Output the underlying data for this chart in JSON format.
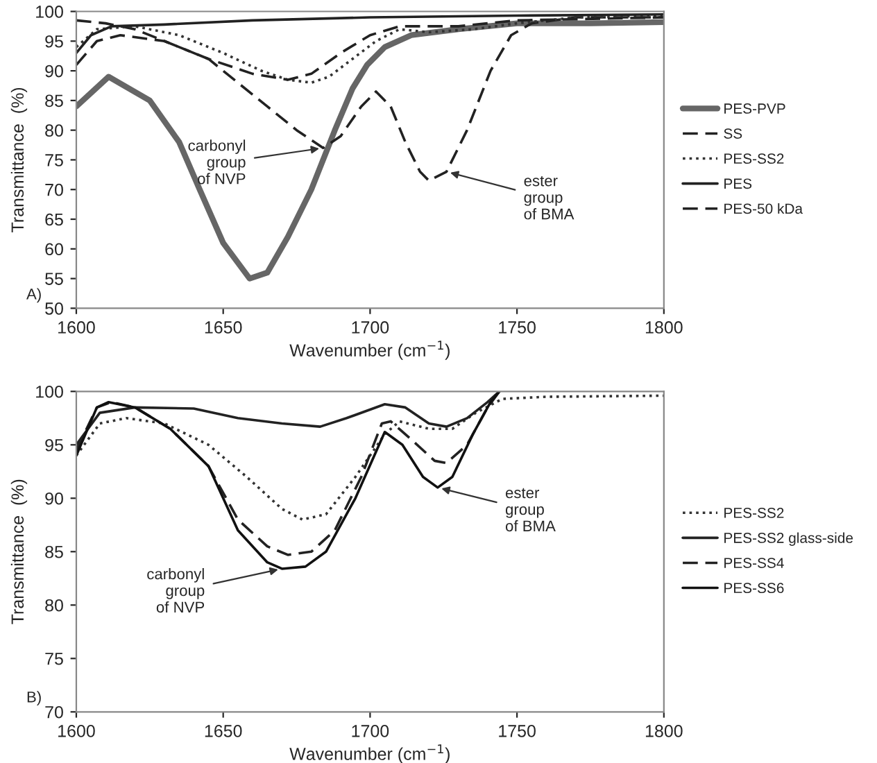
{
  "chart_data": [
    {
      "type": "line",
      "xlabel": "Wavenumber (cm$^{−1}$)",
      "ylabel": "Transmittance  (%)",
      "xlim": [
        1600,
        1800
      ],
      "xticks": [
        1600,
        1650,
        1700,
        1750,
        1800
      ],
      "ylim": [
        50,
        100
      ],
      "yticks": [
        50,
        55,
        60,
        65,
        70,
        75,
        80,
        85,
        90,
        95,
        100
      ],
      "grid": false,
      "legend": "right",
      "marker": "none",
      "annotations": [
        "A)",
        {
          "text": "carbonyl\ngroup\nof NVP",
          "x": 1684,
          "y": 77
        },
        {
          "text": "ester\ngroup\nof BMA",
          "x": 1726,
          "y": 73
        }
      ],
      "series": [
        {
          "name": "PES-PVP",
          "color": "#666666",
          "line_style": "solid",
          "x": [
            1600,
            1611,
            1625,
            1635,
            1642,
            1650,
            1659,
            1665,
            1672,
            1680,
            1688,
            1694,
            1699,
            1705,
            1714,
            1730,
            1750,
            1775,
            1800
          ],
          "values": [
            84,
            89,
            85,
            78,
            70,
            61,
            55,
            56,
            62,
            70,
            80,
            87,
            91,
            94,
            96,
            97,
            98,
            98,
            98.2
          ]
        },
        {
          "name": "SS",
          "color": "#222222",
          "line_style": "dashed",
          "x": [
            1600,
            1610,
            1620,
            1630,
            1645,
            1655,
            1665,
            1675,
            1684,
            1690,
            1697,
            1702,
            1707,
            1712,
            1717,
            1720,
            1726,
            1733,
            1741,
            1748,
            1755,
            1770,
            1800
          ],
          "values": [
            98.5,
            98,
            97,
            95,
            92,
            88,
            84,
            80,
            77,
            79,
            84,
            86.5,
            84,
            78,
            73,
            71.5,
            73,
            80,
            90,
            96,
            98,
            99,
            99
          ]
        },
        {
          "name": "PES-SS2",
          "color": "#333333",
          "line_style": "dotted",
          "x": [
            1600,
            1607,
            1620,
            1635,
            1650,
            1663,
            1672,
            1680,
            1686,
            1694,
            1702,
            1710,
            1720,
            1735,
            1750,
            1770,
            1800
          ],
          "values": [
            94,
            97,
            97.5,
            96,
            93,
            90,
            88.5,
            88,
            89,
            92,
            95,
            97,
            96.5,
            97,
            98,
            99,
            99.3
          ]
        },
        {
          "name": "PES",
          "color": "#222222",
          "line_style": "solid",
          "x": [
            1600,
            1605,
            1612,
            1630,
            1660,
            1700,
            1750,
            1800
          ],
          "values": [
            93,
            96,
            97.5,
            97.8,
            98.5,
            99,
            99.3,
            99.5
          ]
        },
        {
          "name": "PES-50 kDa",
          "color": "#222222",
          "line_style": "dashed",
          "x": [
            1600,
            1607,
            1615,
            1630,
            1645,
            1660,
            1672,
            1680,
            1690,
            1700,
            1710,
            1730,
            1750,
            1800
          ],
          "values": [
            91,
            95,
            96,
            95,
            92,
            89.5,
            88.5,
            89.5,
            93,
            96,
            97.5,
            97.5,
            98.5,
            99
          ]
        }
      ]
    },
    {
      "type": "line",
      "xlabel": "Wavenumber (cm$^{−1}$)",
      "ylabel": "Transmittance  (%)",
      "xlim": [
        1600,
        1800
      ],
      "xticks": [
        1600,
        1650,
        1700,
        1750,
        1800
      ],
      "ylim": [
        70,
        100
      ],
      "yticks": [
        70,
        75,
        80,
        85,
        90,
        95,
        100
      ],
      "grid": false,
      "legend": "right",
      "marker": "none",
      "annotations": [
        "B)",
        {
          "text": "carbonyl\ngroup\nof NVP",
          "x": 1670,
          "y": 83.4
        },
        {
          "text": "ester\ngroup\nof BMA",
          "x": 1723,
          "y": 91
        }
      ],
      "series": [
        {
          "name": "PES-SS2",
          "color": "#333333",
          "line_style": "dotted",
          "x": [
            1600,
            1608,
            1617,
            1630,
            1645,
            1658,
            1670,
            1677,
            1685,
            1695,
            1705,
            1710,
            1720,
            1728,
            1736,
            1745,
            1760,
            1800
          ],
          "values": [
            94,
            97,
            97.5,
            97,
            95,
            92,
            89,
            88,
            88.5,
            92,
            96,
            97.2,
            96.5,
            96.5,
            98,
            99.3,
            99.5,
            99.6
          ]
        },
        {
          "name": "PES-SS2 glass-side",
          "color": "#222222",
          "line_style": "solid",
          "x": [
            1600,
            1608,
            1620,
            1640,
            1655,
            1670,
            1683,
            1692,
            1705,
            1712,
            1720,
            1726,
            1733,
            1740,
            1744
          ],
          "values": [
            95,
            98,
            98.5,
            98.4,
            97.5,
            97,
            96.7,
            97.5,
            98.8,
            98.5,
            97,
            96.7,
            97.5,
            99,
            100
          ]
        },
        {
          "name": "PES-SS4",
          "color": "#222222",
          "line_style": "dashed",
          "x": [
            1600,
            1607,
            1612,
            1620,
            1632,
            1645,
            1655,
            1665,
            1672,
            1680,
            1688,
            1697,
            1704,
            1707,
            1714,
            1722,
            1726,
            1733,
            1740,
            1744
          ],
          "values": [
            94.5,
            98.5,
            99,
            98.5,
            96.5,
            93,
            88,
            85.5,
            84.7,
            85,
            87,
            92,
            97,
            97.2,
            95.5,
            93.5,
            93.3,
            95,
            98.5,
            100
          ]
        },
        {
          "name": "PES-SS6",
          "color": "#111111",
          "line_style": "solid",
          "x": [
            1600,
            1607,
            1611,
            1620,
            1632,
            1645,
            1655,
            1665,
            1670,
            1678,
            1685,
            1695,
            1705,
            1711,
            1718,
            1723,
            1728,
            1735,
            1741,
            1744
          ],
          "values": [
            94,
            98.5,
            99,
            98.5,
            96.5,
            93,
            87,
            84,
            83.4,
            83.6,
            85,
            90,
            96.2,
            95,
            92,
            91,
            92,
            96,
            99,
            100
          ]
        }
      ]
    }
  ]
}
